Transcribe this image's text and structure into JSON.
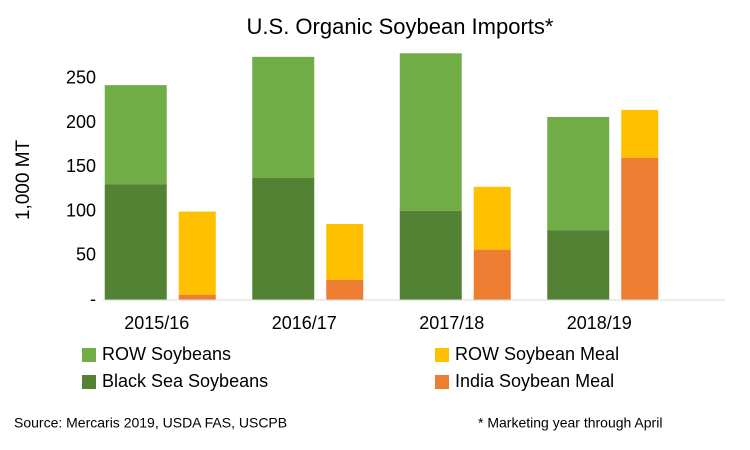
{
  "chart_data": {
    "type": "stacked-grouped-bar",
    "title": "U.S. Organic Soybean Imports*",
    "y_label": "1,000 MT",
    "categories": [
      "2015/16",
      "2016/17",
      "2017/18",
      "2018/19"
    ],
    "series": [
      {
        "name": "ROW Soybeans",
        "color": "#70ad47",
        "stack": "soybeans",
        "values": [
          112,
          137,
          178,
          128
        ]
      },
      {
        "name": "ROW Soybean Meal",
        "color": "#ffc000",
        "stack": "meal",
        "values": [
          94,
          63,
          71,
          54
        ]
      },
      {
        "name": "Black Sea Soybeans",
        "color": "#548235",
        "stack": "soybeans",
        "values": [
          131,
          138,
          101,
          79
        ]
      },
      {
        "name": "India Soybean Meal",
        "color": "#ed7d31",
        "stack": "meal",
        "values": [
          6,
          23,
          57,
          161
        ]
      }
    ],
    "ylim": [
      0,
      285
    ],
    "yticks": [
      {
        "value": 0,
        "label": "-"
      },
      50,
      100,
      150,
      200,
      250
    ],
    "source": "Source: Mercaris 2019,  USDA FAS, USCPB",
    "note": "* Marketing year through April"
  }
}
